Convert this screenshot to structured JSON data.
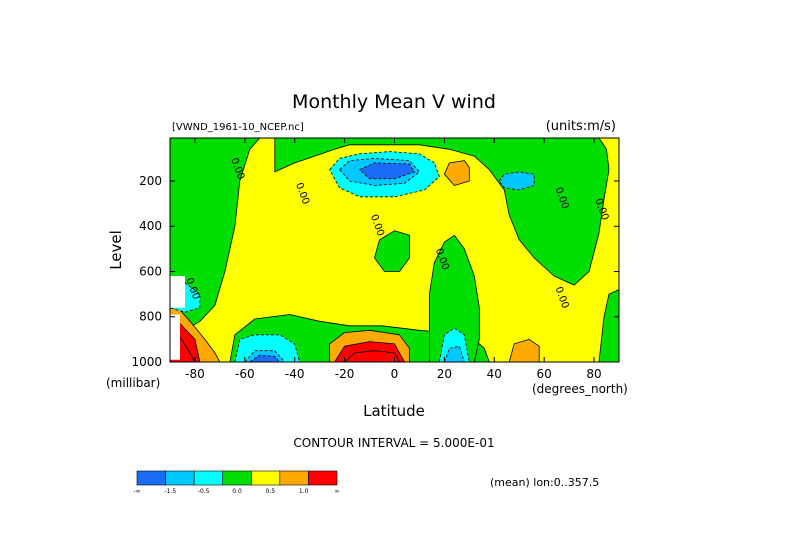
{
  "chart_data": {
    "type": "heatmap",
    "title": "Monthly Mean V wind",
    "dataset": "[VWND_1961-10_NCEP.nc]",
    "units": "(units:m/s)",
    "xlabel": "Latitude",
    "ylabel": "Level",
    "x_unit": "(degrees_north)",
    "y_unit": "(millibar)",
    "xlim": [
      -90,
      90
    ],
    "ylim": [
      1000,
      10
    ],
    "x_ticks": [
      -80,
      -60,
      -40,
      -20,
      0,
      20,
      40,
      60,
      80
    ],
    "x_tick_labels": [
      "-80",
      "-60",
      "-40",
      "-20",
      "0",
      "20",
      "40",
      "60",
      "80"
    ],
    "y_ticks": [
      200,
      400,
      600,
      800,
      1000
    ],
    "y_tick_labels": [
      "200",
      "400",
      "600",
      "800",
      "1000"
    ],
    "contour_interval_text": "CONTOUR INTERVAL = 5.000E-01",
    "mean_text": "(mean) lon:0..357.5",
    "zero_contour_label": "0.00",
    "colorbar": {
      "colors": [
        "#1a6cf5",
        "#00c8ff",
        "#00ffff",
        "#00dd00",
        "#ffff00",
        "#ffaa00",
        "#ff0000"
      ],
      "labels": [
        "-∞",
        "-1.5",
        "-0.5",
        "0.0",
        "0.5",
        "1.0",
        "∞"
      ]
    },
    "regions": [
      {
        "level": 0,
        "points": [
          [
            -90,
            10
          ],
          [
            -54,
            10
          ],
          [
            -58,
            60
          ],
          [
            -62,
            200
          ],
          [
            -64,
            400
          ],
          [
            -68,
            600
          ],
          [
            -72,
            750
          ],
          [
            -78,
            820
          ],
          [
            -90,
            900
          ]
        ]
      },
      {
        "level": 0,
        "points": [
          [
            -48,
            160
          ],
          [
            -40,
            120
          ],
          [
            -32,
            90
          ],
          [
            -24,
            60
          ],
          [
            -18,
            40
          ],
          [
            -10,
            40
          ],
          [
            10,
            40
          ],
          [
            22,
            60
          ],
          [
            32,
            90
          ],
          [
            38,
            150
          ],
          [
            44,
            240
          ],
          [
            46,
            350
          ],
          [
            50,
            460
          ],
          [
            56,
            540
          ],
          [
            64,
            620
          ],
          [
            72,
            660
          ],
          [
            78,
            600
          ],
          [
            82,
            430
          ],
          [
            84,
            280
          ],
          [
            86,
            150
          ],
          [
            85,
            60
          ],
          [
            82,
            10
          ],
          [
            20,
            10
          ],
          [
            -20,
            10
          ],
          [
            -48,
            10
          ]
        ]
      },
      {
        "level": 0,
        "points": [
          [
            -66,
            1000
          ],
          [
            -64,
            880
          ],
          [
            -56,
            810
          ],
          [
            -42,
            790
          ],
          [
            -30,
            820
          ],
          [
            -18,
            840
          ],
          [
            -5,
            840
          ],
          [
            10,
            860
          ],
          [
            20,
            870
          ],
          [
            30,
            880
          ],
          [
            36,
            940
          ],
          [
            38,
            1000
          ]
        ]
      },
      {
        "level": 0,
        "points": [
          [
            14,
            1000
          ],
          [
            14,
            700
          ],
          [
            16,
            560
          ],
          [
            20,
            470
          ],
          [
            24,
            440
          ],
          [
            28,
            500
          ],
          [
            32,
            620
          ],
          [
            34,
            760
          ],
          [
            34,
            900
          ],
          [
            32,
            1000
          ]
        ]
      },
      {
        "level": 0,
        "points": [
          [
            -8,
            540
          ],
          [
            -6,
            460
          ],
          [
            0,
            420
          ],
          [
            6,
            440
          ],
          [
            6,
            540
          ],
          [
            2,
            600
          ],
          [
            -4,
            600
          ]
        ]
      },
      {
        "level": 0,
        "points": [
          [
            82,
            1000
          ],
          [
            84,
            800
          ],
          [
            86,
            700
          ],
          [
            90,
            680
          ],
          [
            90,
            1000
          ]
        ]
      },
      {
        "level": -1,
        "points": [
          [
            -26,
            150
          ],
          [
            -22,
            100
          ],
          [
            -14,
            80
          ],
          [
            -2,
            70
          ],
          [
            10,
            80
          ],
          [
            16,
            120
          ],
          [
            18,
            180
          ],
          [
            12,
            240
          ],
          [
            0,
            270
          ],
          [
            -14,
            270
          ],
          [
            -22,
            230
          ]
        ]
      },
      {
        "level": -2,
        "points": [
          [
            -22,
            150
          ],
          [
            -18,
            110
          ],
          [
            -8,
            100
          ],
          [
            6,
            110
          ],
          [
            10,
            160
          ],
          [
            4,
            210
          ],
          [
            -8,
            220
          ],
          [
            -18,
            200
          ]
        ]
      },
      {
        "level": -3,
        "points": [
          [
            -14,
            150
          ],
          [
            -8,
            120
          ],
          [
            6,
            125
          ],
          [
            8,
            160
          ],
          [
            0,
            190
          ],
          [
            -10,
            190
          ]
        ]
      },
      {
        "level": 1,
        "points": [
          [
            20,
            170
          ],
          [
            22,
            120
          ],
          [
            28,
            110
          ],
          [
            30,
            140
          ],
          [
            30,
            200
          ],
          [
            24,
            220
          ]
        ]
      },
      {
        "level": -2,
        "points": [
          [
            42,
            200
          ],
          [
            44,
            170
          ],
          [
            50,
            160
          ],
          [
            56,
            170
          ],
          [
            56,
            220
          ],
          [
            50,
            240
          ],
          [
            44,
            230
          ]
        ]
      },
      {
        "level": -1,
        "points": [
          [
            -64,
            1000
          ],
          [
            -62,
            900
          ],
          [
            -56,
            880
          ],
          [
            -46,
            880
          ],
          [
            -40,
            920
          ],
          [
            -38,
            1000
          ]
        ]
      },
      {
        "level": -2,
        "points": [
          [
            -60,
            1000
          ],
          [
            -56,
            950
          ],
          [
            -48,
            950
          ],
          [
            -44,
            1000
          ]
        ]
      },
      {
        "level": -3,
        "points": [
          [
            -58,
            1000
          ],
          [
            -54,
            970
          ],
          [
            -48,
            975
          ],
          [
            -46,
            1000
          ]
        ]
      },
      {
        "level": -1,
        "points": [
          [
            18,
            1000
          ],
          [
            20,
            880
          ],
          [
            24,
            850
          ],
          [
            28,
            880
          ],
          [
            30,
            1000
          ]
        ]
      },
      {
        "level": -2,
        "points": [
          [
            20,
            1000
          ],
          [
            22,
            940
          ],
          [
            26,
            930
          ],
          [
            28,
            1000
          ]
        ]
      },
      {
        "level": 1,
        "points": [
          [
            -26,
            1000
          ],
          [
            -26,
            920
          ],
          [
            -20,
            870
          ],
          [
            -10,
            860
          ],
          [
            2,
            880
          ],
          [
            6,
            940
          ],
          [
            6,
            1000
          ]
        ]
      },
      {
        "level": 2,
        "points": [
          [
            -24,
            1000
          ],
          [
            -20,
            930
          ],
          [
            -10,
            910
          ],
          [
            0,
            920
          ],
          [
            4,
            1000
          ]
        ]
      },
      {
        "level": 3,
        "points": [
          [
            -20,
            1000
          ],
          [
            -16,
            960
          ],
          [
            -8,
            950
          ],
          [
            0,
            960
          ],
          [
            2,
            1000
          ]
        ]
      },
      {
        "level": 1,
        "points": [
          [
            46,
            1000
          ],
          [
            48,
            920
          ],
          [
            54,
            900
          ],
          [
            58,
            930
          ],
          [
            58,
            1000
          ]
        ]
      },
      {
        "level": 1,
        "points": [
          [
            -90,
            1000
          ],
          [
            -90,
            760
          ],
          [
            -86,
            770
          ],
          [
            -82,
            820
          ],
          [
            -76,
            900
          ],
          [
            -72,
            960
          ],
          [
            -70,
            1000
          ]
        ]
      },
      {
        "level": 2,
        "points": [
          [
            -90,
            1000
          ],
          [
            -90,
            820
          ],
          [
            -86,
            830
          ],
          [
            -80,
            900
          ],
          [
            -78,
            1000
          ]
        ]
      },
      {
        "level": 3,
        "points": [
          [
            -90,
            1000
          ],
          [
            -90,
            880
          ],
          [
            -86,
            890
          ],
          [
            -82,
            960
          ],
          [
            -80,
            1000
          ]
        ]
      },
      {
        "level": -1,
        "points": [
          [
            -90,
            660
          ],
          [
            -84,
            650
          ],
          [
            -78,
            700
          ],
          [
            -78,
            760
          ],
          [
            -84,
            780
          ],
          [
            -90,
            760
          ]
        ]
      },
      {
        "level": 99,
        "points": [
          [
            -90,
            620
          ],
          [
            -84,
            620
          ],
          [
            -84,
            760
          ],
          [
            -90,
            760
          ]
        ]
      },
      {
        "level": 99,
        "points": [
          [
            -90,
            790
          ],
          [
            -86,
            790
          ],
          [
            -86,
            990
          ],
          [
            -90,
            990
          ]
        ]
      }
    ],
    "contour_labels": [
      {
        "lat": -64,
        "lev": 150
      },
      {
        "lat": -38,
        "lev": 260
      },
      {
        "lat": -8,
        "lev": 400
      },
      {
        "lat": 18,
        "lev": 550
      },
      {
        "lat": -82,
        "lev": 680
      },
      {
        "lat": 66,
        "lev": 280
      },
      {
        "lat": 82,
        "lev": 330
      },
      {
        "lat": 66,
        "lev": 720
      }
    ]
  }
}
